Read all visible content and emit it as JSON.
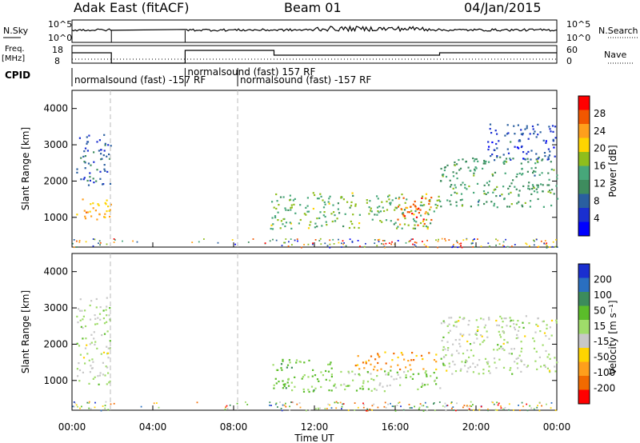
{
  "header": {
    "station": "Adak East (fitACF)",
    "beam": "Beam 01",
    "date": "04/Jan/2015"
  },
  "strips": {
    "nsky_label": "N.Sky",
    "nsearch_label": "N.Search",
    "nsky_ticks": [
      "10^5",
      "10^0"
    ],
    "nsearch_ticks": [
      "10^5",
      "10^0"
    ],
    "freq_label": "Freq.",
    "freq_unit": "[MHz]",
    "freq_ticks": [
      "18",
      "8"
    ],
    "nave_label": "Nave",
    "nave_ticks": [
      "60",
      "0"
    ],
    "cpid_label": "CPID",
    "cpid_segments": [
      {
        "start_h": 0,
        "text": "normalsound (fast) -157 RF"
      },
      {
        "start_h": 5.6,
        "text": "normalsound (fast) 157 RF"
      },
      {
        "start_h": 8.2,
        "text": "normalsound (fast) -157 RF"
      }
    ]
  },
  "axes": {
    "ylabel": "Slant Range [km]",
    "xlabel": "Time UT",
    "x_ticks": [
      "00:00",
      "04:00",
      "08:00",
      "12:00",
      "16:00",
      "20:00",
      "00:00"
    ],
    "y_ticks": [
      "1000",
      "2000",
      "3000",
      "4000"
    ]
  },
  "colorbars": {
    "power": {
      "title": "Power [dB]",
      "ticks": [
        "28",
        "24",
        "20",
        "16",
        "12",
        "8",
        "4"
      ],
      "colors": [
        "#ff0000",
        "#f25700",
        "#ff9f1c",
        "#ffd400",
        "#8fbe1c",
        "#47a77a",
        "#3e8c5e",
        "#2a5fa0",
        "#1a2fd0",
        "#0000ff"
      ]
    },
    "velocity": {
      "title": "Velocity [m s⁻¹]",
      "ticks": [
        "200",
        "100",
        "50",
        "15",
        "-15",
        "-50",
        "-100",
        "-200"
      ],
      "colors": [
        "#1a2fd0",
        "#2a6fc0",
        "#3c8c5c",
        "#5bbd2a",
        "#9fdc6a",
        "#c8c8c8",
        "#ffd400",
        "#ff9f1c",
        "#f26a00",
        "#ff0000"
      ]
    }
  },
  "chart_data": [
    {
      "type": "heatmap",
      "title": "Power [dB]",
      "xlabel": "Time UT",
      "ylabel": "Slant Range [km]",
      "xlim": [
        0,
        24
      ],
      "ylim": [
        180,
        4500
      ],
      "colorbar": {
        "label": "Power [dB]",
        "range": [
          0,
          30
        ]
      },
      "regions": [
        {
          "t0": 0.2,
          "t1": 1.9,
          "r0": 900,
          "r1": 1600,
          "value": 22
        },
        {
          "t0": 0.2,
          "t1": 1.9,
          "r0": 1900,
          "r1": 3300,
          "value": 6
        },
        {
          "t0": 9.8,
          "t1": 18.2,
          "r0": 700,
          "r1": 1700,
          "value": 15
        },
        {
          "t0": 16.0,
          "t1": 17.8,
          "r0": 800,
          "r1": 1600,
          "value": 26
        },
        {
          "t0": 18.2,
          "t1": 24.0,
          "r0": 1300,
          "r1": 2700,
          "value": 12
        },
        {
          "t0": 20.5,
          "t1": 24.0,
          "r0": 2600,
          "r1": 3600,
          "value": 5
        }
      ]
    },
    {
      "type": "heatmap",
      "title": "Velocity [m s⁻¹]",
      "xlabel": "Time UT",
      "ylabel": "Slant Range [km]",
      "xlim": [
        0,
        24
      ],
      "ylim": [
        180,
        4500
      ],
      "colorbar": {
        "label": "Velocity [m s⁻¹]",
        "range": [
          -200,
          200
        ]
      },
      "regions": [
        {
          "t0": 0.2,
          "t1": 1.9,
          "r0": 900,
          "r1": 1800,
          "value": 0
        },
        {
          "t0": 0.2,
          "t1": 1.9,
          "r0": 1900,
          "r1": 3300,
          "value": 0
        },
        {
          "t0": 9.8,
          "t1": 13.0,
          "r0": 700,
          "r1": 1600,
          "value": 50
        },
        {
          "t0": 13.0,
          "t1": 18.2,
          "r0": 700,
          "r1": 1300,
          "value": 30
        },
        {
          "t0": 14.0,
          "t1": 18.0,
          "r0": 1300,
          "r1": 1800,
          "value": -120
        },
        {
          "t0": 18.2,
          "t1": 24.0,
          "r0": 1200,
          "r1": 2800,
          "value": 0
        }
      ]
    }
  ]
}
